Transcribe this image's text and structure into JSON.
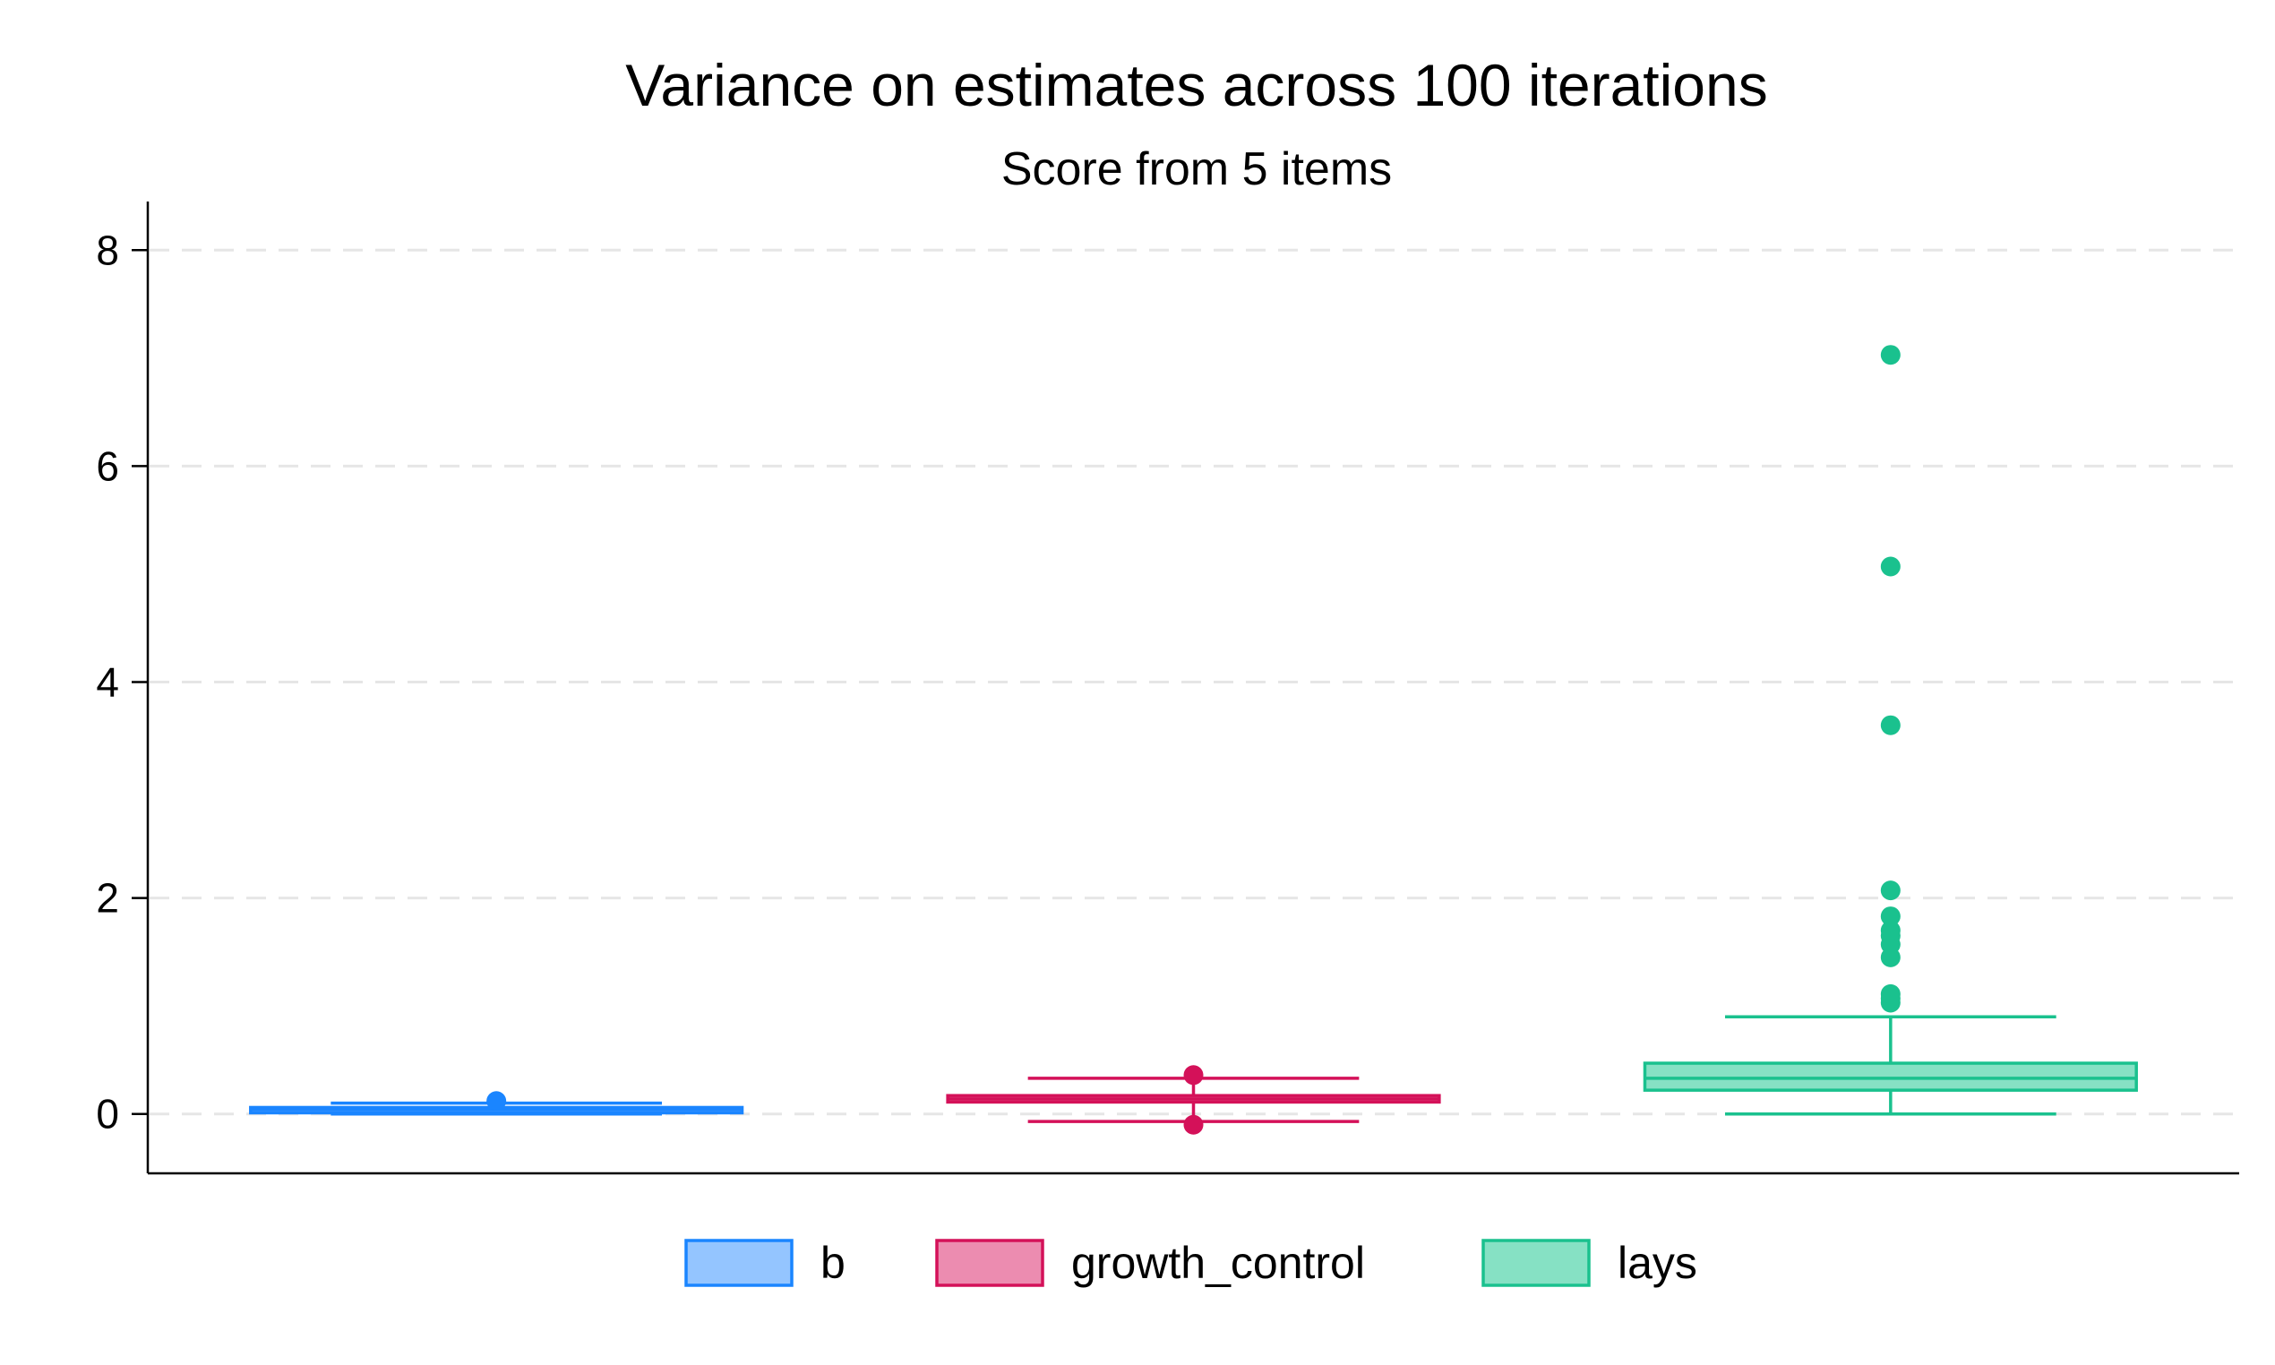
{
  "chart_data": {
    "type": "box",
    "title": "Variance on estimates across 100 iterations",
    "subtitle": "Score from 5 items",
    "xlabel": "",
    "ylabel": "",
    "ylim": [
      -0.55,
      8.45
    ],
    "yticks": [
      0,
      2,
      4,
      6,
      8
    ],
    "y_tick_labels": [
      "0",
      "2",
      "4",
      "6",
      "8"
    ],
    "grid": "horizontal-dashed",
    "legend_position": "bottom",
    "series": [
      {
        "name": "b",
        "color": "#1a85ff",
        "fill": "#94c5ff",
        "whisker_low": 0.0,
        "q1": 0.02,
        "median": 0.04,
        "q3": 0.06,
        "whisker_high": 0.1,
        "outliers": [
          0.12
        ]
      },
      {
        "name": "growth_control",
        "color": "#d41159",
        "fill": "#ec8cb0",
        "whisker_low": -0.07,
        "q1": 0.11,
        "median": 0.14,
        "q3": 0.17,
        "whisker_high": 0.33,
        "outliers": [
          -0.1,
          0.36
        ]
      },
      {
        "name": "lays",
        "color": "#1ac18e",
        "fill": "#86e1c4",
        "whisker_low": 0.0,
        "q1": 0.22,
        "median": 0.33,
        "q3": 0.47,
        "whisker_high": 0.9,
        "outliers": [
          1.03,
          1.07,
          1.11,
          1.45,
          1.57,
          1.65,
          1.7,
          1.83,
          2.07,
          3.6,
          5.07,
          7.03
        ]
      }
    ]
  }
}
